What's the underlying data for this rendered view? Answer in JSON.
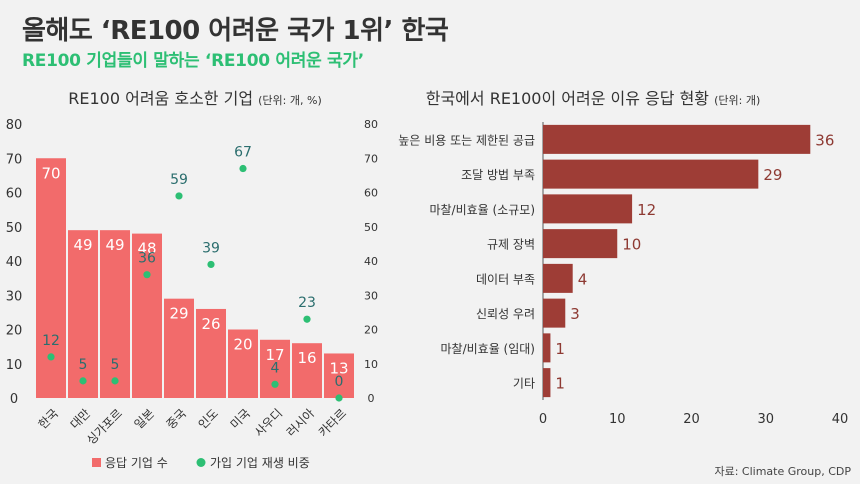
{
  "title": "올해도 ‘RE100 어려운 국가 1위’ 한국",
  "subtitle": "RE100 기업들이 말하는 ‘RE100 어려운 국가’",
  "source": "자료: Climate Group, CDP",
  "colors": {
    "bar": "#f26b6b",
    "dot": "#2dbf74",
    "hbar": "#9e3d36",
    "hlabel": "#8e3a33",
    "teal": "#2b6e6e"
  },
  "chart_data": [
    {
      "type": "bar",
      "title": "RE100 어려움 호소한 기업",
      "unit": "(단위: 개, %)",
      "categories": [
        "한국",
        "대만",
        "싱가포르",
        "일본",
        "중국",
        "인도",
        "미국",
        "사우디",
        "러시아",
        "카타르"
      ],
      "series": [
        {
          "name": "응답 기업 수",
          "values": [
            70,
            49,
            49,
            48,
            29,
            26,
            20,
            17,
            16,
            13
          ]
        },
        {
          "name": "가입 기업 재생 비중",
          "values": [
            12,
            5,
            5,
            36,
            59,
            39,
            67,
            4,
            23,
            0
          ]
        }
      ],
      "ylim": [
        0,
        80
      ],
      "yticks": [
        0,
        10,
        20,
        30,
        40,
        50,
        60,
        70,
        80
      ],
      "legend": "bottom"
    },
    {
      "type": "bar",
      "orientation": "horizontal",
      "title": "한국에서 RE100이 어려운 이유 응답 현황",
      "unit": "(단위: 개)",
      "categories": [
        "높은 비용 또는 제한된 공급",
        "조달 방법 부족",
        "마찰/비효율 (소규모)",
        "규제 장벽",
        "데이터 부족",
        "신뢰성 우려",
        "마찰/비효율 (임대)",
        "기타"
      ],
      "values": [
        36,
        29,
        12,
        10,
        4,
        3,
        1,
        1
      ],
      "xlim": [
        0,
        40
      ],
      "xticks": [
        0,
        10,
        20,
        30,
        40
      ]
    }
  ]
}
